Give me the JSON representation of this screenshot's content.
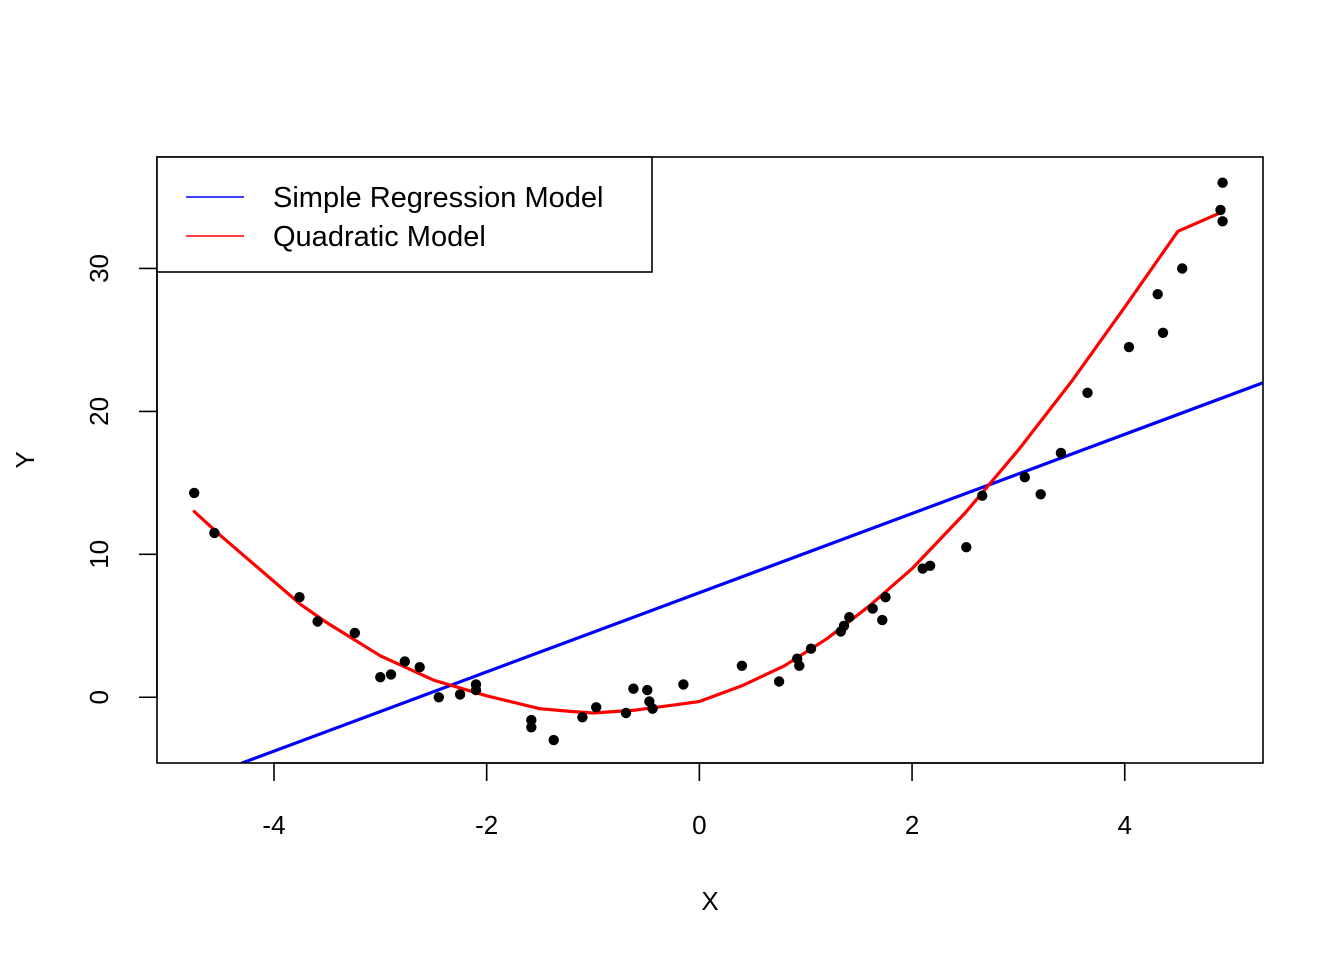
{
  "chart_data": {
    "type": "scatter",
    "title": "",
    "xlabel": "X",
    "ylabel": "Y",
    "xlim": [
      -5.1,
      5.3
    ],
    "ylim": [
      -4.6,
      37.8
    ],
    "x_ticks": [
      -4,
      -2,
      0,
      2,
      4
    ],
    "x_tick_labels": [
      "-4",
      "-2",
      "0",
      "2",
      "4"
    ],
    "y_ticks": [
      0,
      10,
      20,
      30
    ],
    "y_tick_labels": [
      "0",
      "10",
      "20",
      "30"
    ],
    "grid": false,
    "legend": {
      "position": "top-left",
      "entries": [
        {
          "label": "Simple Regression Model",
          "color": "#0000ff"
        },
        {
          "label": "Quadratic Model",
          "color": "#ff0000"
        }
      ]
    },
    "points": {
      "color": "#000000",
      "x": [
        -4.75,
        -4.56,
        -3.76,
        -3.59,
        -3.24,
        -3.0,
        -2.9,
        -2.77,
        -2.63,
        -2.45,
        -2.25,
        -2.1,
        -2.1,
        -1.58,
        -1.58,
        -1.37,
        -1.1,
        -0.97,
        -0.69,
        -0.62,
        -0.49,
        -0.47,
        -0.44,
        -0.15,
        0.4,
        0.75,
        0.92,
        0.94,
        1.05,
        1.33,
        1.36,
        1.41,
        1.63,
        1.72,
        1.75,
        2.1,
        2.17,
        2.51,
        2.66,
        3.06,
        3.21,
        3.4,
        3.65,
        4.04,
        4.31,
        4.36,
        4.54,
        4.9,
        4.92,
        4.92
      ],
      "y": [
        14.3,
        11.5,
        7.0,
        5.3,
        4.5,
        1.4,
        1.6,
        2.5,
        2.1,
        0.0,
        0.2,
        0.9,
        0.5,
        -1.6,
        -2.1,
        -3.0,
        -1.4,
        -0.7,
        -1.1,
        0.6,
        0.5,
        -0.3,
        -0.8,
        0.9,
        2.2,
        1.1,
        2.7,
        2.2,
        3.4,
        4.6,
        5.0,
        5.6,
        6.2,
        5.4,
        7.0,
        9.0,
        9.2,
        10.5,
        14.1,
        15.4,
        14.2,
        17.1,
        21.3,
        24.5,
        28.2,
        25.5,
        30.0,
        34.1,
        36.0,
        33.3
      ]
    },
    "series": [
      {
        "name": "Simple Regression Model",
        "color": "#0000ff",
        "type": "line",
        "x": [
          -4.3,
          5.3
        ],
        "y": [
          -4.6,
          22.0
        ]
      },
      {
        "name": "Quadratic Model",
        "color": "#ff0000",
        "type": "line",
        "x": [
          -4.75,
          -4.5,
          -4.0,
          -3.75,
          -3.5,
          -3.0,
          -2.5,
          -2.0,
          -1.5,
          -1.2,
          -1.0,
          -0.6,
          -0.2,
          0.0,
          0.4,
          0.8,
          1.2,
          1.6,
          2.0,
          2.5,
          3.0,
          3.5,
          4.0,
          4.5,
          4.9
        ],
        "y": [
          13.0,
          11.3,
          8.1,
          6.5,
          5.2,
          2.9,
          1.2,
          0.1,
          -0.8,
          -1.0,
          -1.1,
          -0.9,
          -0.5,
          -0.3,
          0.8,
          2.2,
          4.1,
          6.4,
          9.0,
          12.9,
          17.3,
          22.1,
          27.3,
          32.6,
          33.9
        ]
      }
    ]
  }
}
